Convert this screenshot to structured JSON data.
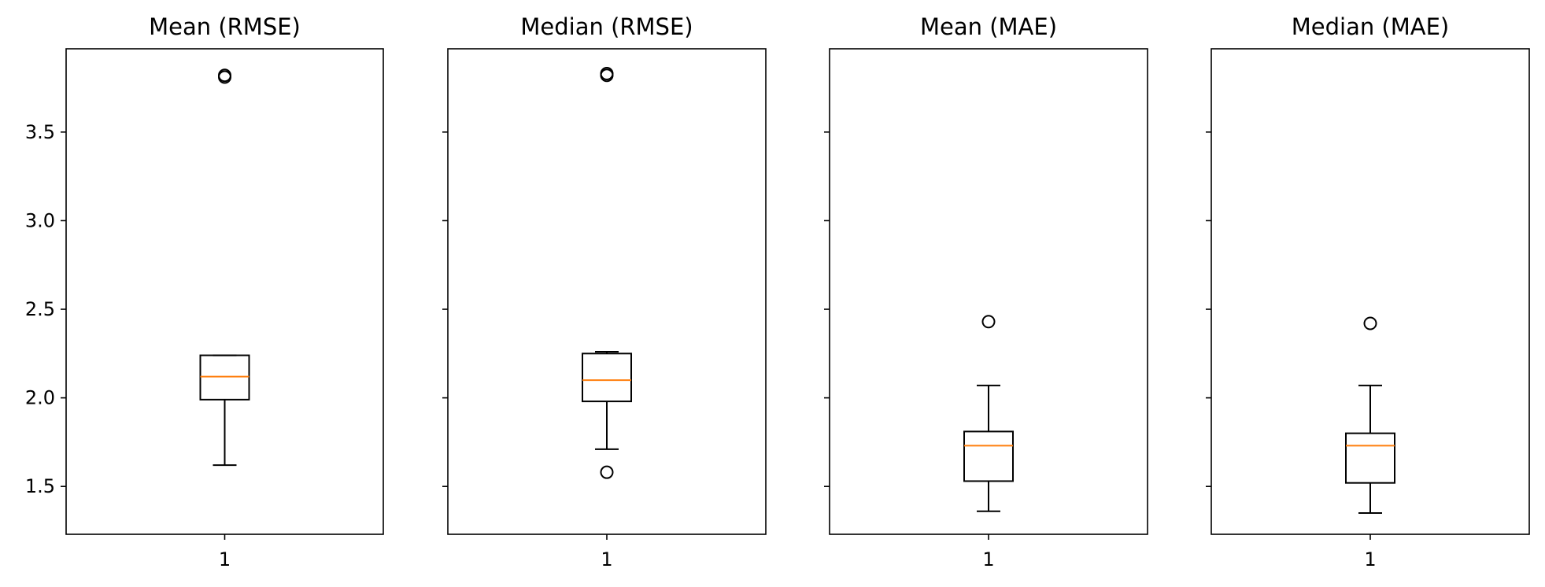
{
  "chart_data": [
    {
      "type": "box",
      "title": "Mean (RMSE)",
      "categories": [
        "1"
      ],
      "ylim": [
        1.23,
        3.97
      ],
      "yticks": [
        1.5,
        2.0,
        2.5,
        3.0,
        3.5
      ],
      "ytick_labels": [
        "1.5",
        "2.0",
        "2.5",
        "3.0",
        "3.5"
      ],
      "box": {
        "whisker_low": 1.62,
        "q1": 1.99,
        "median": 2.12,
        "q3": 2.24,
        "whisker_high": 2.24,
        "outliers": [
          3.81,
          3.82
        ]
      }
    },
    {
      "type": "box",
      "title": "Median (RMSE)",
      "categories": [
        "1"
      ],
      "ylim": [
        1.23,
        3.97
      ],
      "yticks": [
        1.5,
        2.0,
        2.5,
        3.0,
        3.5
      ],
      "box": {
        "whisker_low": 1.71,
        "q1": 1.98,
        "median": 2.1,
        "q3": 2.25,
        "whisker_high": 2.26,
        "outliers": [
          1.58,
          3.82,
          3.83
        ]
      }
    },
    {
      "type": "box",
      "title": "Mean (MAE)",
      "categories": [
        "1"
      ],
      "ylim": [
        1.23,
        3.97
      ],
      "yticks": [
        1.5,
        2.0,
        2.5,
        3.0,
        3.5
      ],
      "box": {
        "whisker_low": 1.36,
        "q1": 1.53,
        "median": 1.73,
        "q3": 1.81,
        "whisker_high": 2.07,
        "outliers": [
          2.43
        ]
      }
    },
    {
      "type": "box",
      "title": "Median (MAE)",
      "categories": [
        "1"
      ],
      "ylim": [
        1.23,
        3.97
      ],
      "yticks": [
        1.5,
        2.0,
        2.5,
        3.0,
        3.5
      ],
      "box": {
        "whisker_low": 1.35,
        "q1": 1.52,
        "median": 1.73,
        "q3": 1.8,
        "whisker_high": 2.07,
        "outliers": [
          2.42
        ]
      }
    }
  ],
  "colors": {
    "box": "#000000",
    "median": "#ff7f0e",
    "background": "#ffffff"
  }
}
